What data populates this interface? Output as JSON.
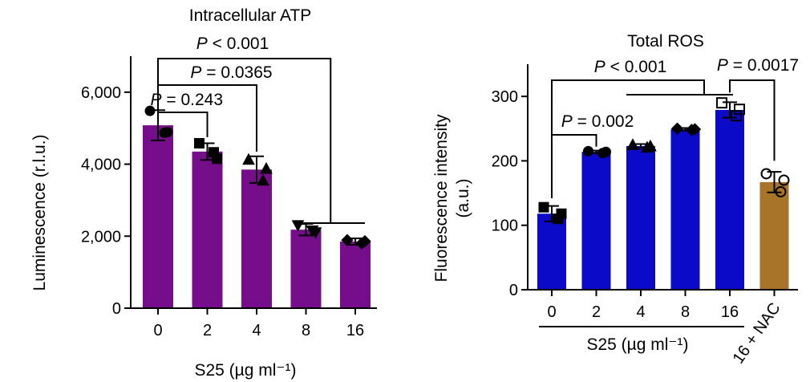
{
  "chart_data": [
    {
      "type": "bar",
      "title": "Intracellular ATP",
      "xlabel": "S25 (µg ml⁻¹)",
      "ylabel": "Luminescence (r.l.u.)",
      "ylim": [
        0,
        7000
      ],
      "yticks": [
        0,
        2000,
        4000,
        6000
      ],
      "ytick_labels": [
        "0",
        "2,000",
        "4,000",
        "6,000"
      ],
      "categories": [
        "0",
        "2",
        "4",
        "8",
        "16"
      ],
      "values": [
        5080,
        4350,
        3850,
        2180,
        1850
      ],
      "errors": [
        420,
        230,
        370,
        160,
        90
      ],
      "points": [
        [
          5480,
          4870,
          4890
        ],
        [
          4580,
          4330,
          4150
        ],
        [
          4130,
          3550,
          3880
        ],
        [
          2300,
          2150,
          2100
        ],
        [
          1890,
          1800,
          1860
        ]
      ],
      "marker_shapes": [
        "circle",
        "square",
        "triangle-up",
        "triangle-down",
        "diamond"
      ],
      "bar_color": "#760d8a",
      "significance": [
        {
          "p_prefix": "P",
          "p_text": " = 0.243",
          "from": 0,
          "to": 1
        },
        {
          "p_prefix": "P",
          "p_text": " = 0.0365",
          "from": 0,
          "to": 2
        },
        {
          "p_prefix": "P",
          "p_text": " < 0.001",
          "from": 0,
          "to": [
            3,
            4
          ]
        }
      ]
    },
    {
      "type": "bar",
      "title": "Total ROS",
      "xlabel": "S25 (µg ml⁻¹)",
      "ylabel_lines": [
        "Fluorescence intensity",
        "(a.u.)"
      ],
      "ylim": [
        0,
        350
      ],
      "yticks": [
        0,
        100,
        200,
        300
      ],
      "ytick_labels": [
        "0",
        "100",
        "200",
        "300"
      ],
      "categories": [
        "0",
        "2",
        "4",
        "8",
        "16",
        "16 + NAC"
      ],
      "values": [
        118,
        214,
        223,
        249,
        279,
        167
      ],
      "errors": [
        12,
        2,
        3,
        2,
        12,
        16
      ],
      "points": [
        [
          128,
          110,
          118
        ],
        [
          215,
          212,
          214
        ],
        [
          225,
          221,
          223
        ],
        [
          250,
          248,
          249
        ],
        [
          290,
          270,
          280
        ],
        [
          180,
          152,
          170
        ]
      ],
      "marker_shapes": [
        "square",
        "circle",
        "triangle-up",
        "diamond",
        "square-open",
        "circle-open"
      ],
      "bar_colors": [
        "#0a0ac8",
        "#0a0ac8",
        "#0a0ac8",
        "#0a0ac8",
        "#0a0ac8",
        "#a8742a"
      ],
      "significance": [
        {
          "p_prefix": "P",
          "p_text": " = 0.002",
          "from": 0,
          "to": 1
        },
        {
          "p_prefix": "P",
          "p_text": " < 0.001",
          "from": 0,
          "to": [
            2,
            4
          ]
        },
        {
          "p_prefix": "P",
          "p_text": " = 0.0017",
          "from": 4,
          "to": 5
        }
      ]
    }
  ]
}
